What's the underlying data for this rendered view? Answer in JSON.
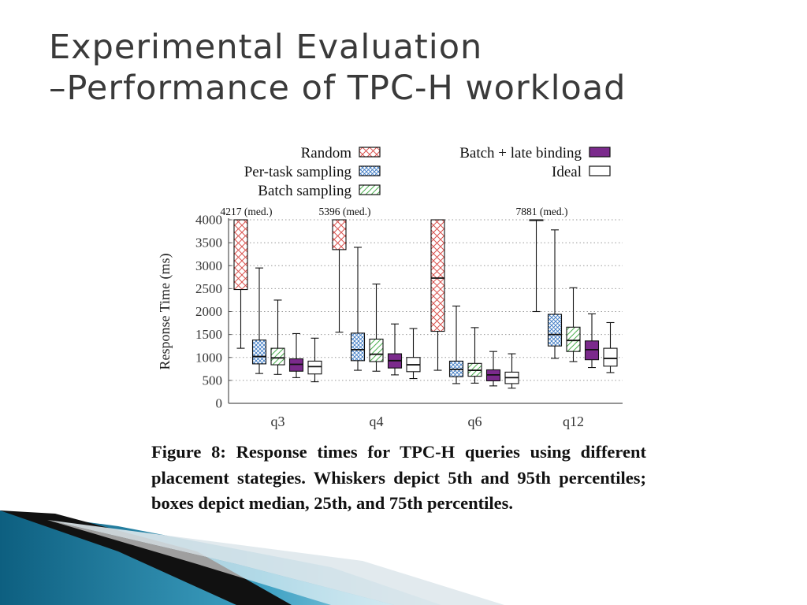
{
  "slide": {
    "title_line1": "Experimental Evaluation",
    "title_line2": "–Performance of TPC-H workload"
  },
  "figure": {
    "caption": "Figure 8: Response times for TPC-H queries using different placement stategies. Whiskers depict 5th and 95th percentiles; boxes depict median, 25th, and 75th percentiles."
  },
  "chart_data": {
    "type": "box",
    "ylabel": "Response Time (ms)",
    "xlabel": "",
    "ylim": [
      0,
      4000
    ],
    "yticks": [
      0,
      500,
      1000,
      1500,
      2000,
      2500,
      3000,
      3500,
      4000
    ],
    "categories": [
      "q3",
      "q4",
      "q6",
      "q12"
    ],
    "grid": true,
    "legend_position": "top",
    "series": [
      {
        "name": "Random",
        "pattern": "diag-cross",
        "color": "#d9534f",
        "values": [
          {
            "p5": 1200,
            "p25": 2480,
            "median": 4217,
            "p75": 4217,
            "p95": 4217
          },
          {
            "p5": 1550,
            "p25": 3350,
            "median": 5396,
            "p75": 5396,
            "p95": 5396
          },
          {
            "p5": 720,
            "p25": 1570,
            "median": 2730,
            "p75": 4000,
            "p95": 4000
          },
          {
            "p5": 2000,
            "p25": 7881,
            "median": 7881,
            "p75": 7881,
            "p95": 7881
          }
        ]
      },
      {
        "name": "Per-task sampling",
        "pattern": "cross-hatch",
        "color": "#3a78c2",
        "values": [
          {
            "p5": 650,
            "p25": 860,
            "median": 1020,
            "p75": 1380,
            "p95": 2950
          },
          {
            "p5": 720,
            "p25": 930,
            "median": 1170,
            "p75": 1530,
            "p95": 3400
          },
          {
            "p5": 430,
            "p25": 580,
            "median": 740,
            "p75": 920,
            "p95": 2120
          },
          {
            "p5": 980,
            "p25": 1250,
            "median": 1500,
            "p75": 1940,
            "p95": 3780
          }
        ]
      },
      {
        "name": "Batch sampling",
        "pattern": "diag",
        "color": "#4caf50",
        "values": [
          {
            "p5": 630,
            "p25": 840,
            "median": 990,
            "p75": 1200,
            "p95": 2250
          },
          {
            "p5": 700,
            "p25": 910,
            "median": 1070,
            "p75": 1400,
            "p95": 2600
          },
          {
            "p5": 440,
            "p25": 590,
            "median": 720,
            "p75": 870,
            "p95": 1650
          },
          {
            "p5": 910,
            "p25": 1130,
            "median": 1370,
            "p75": 1660,
            "p95": 2520
          }
        ]
      },
      {
        "name": "Batch + late binding",
        "pattern": "solid",
        "color": "#7b2a8c",
        "values": [
          {
            "p5": 560,
            "p25": 700,
            "median": 850,
            "p75": 970,
            "p95": 1520
          },
          {
            "p5": 620,
            "p25": 770,
            "median": 930,
            "p75": 1080,
            "p95": 1730
          },
          {
            "p5": 380,
            "p25": 490,
            "median": 620,
            "p75": 730,
            "p95": 1130
          },
          {
            "p5": 780,
            "p25": 950,
            "median": 1170,
            "p75": 1360,
            "p95": 1950
          }
        ]
      },
      {
        "name": "Ideal",
        "pattern": "none",
        "color": "#ffffff",
        "values": [
          {
            "p5": 470,
            "p25": 640,
            "median": 800,
            "p75": 920,
            "p95": 1420
          },
          {
            "p5": 540,
            "p25": 690,
            "median": 840,
            "p75": 1000,
            "p95": 1630
          },
          {
            "p5": 330,
            "p25": 430,
            "median": 560,
            "p75": 680,
            "p95": 1080
          },
          {
            "p5": 670,
            "p25": 810,
            "median": 980,
            "p75": 1200,
            "p95": 1760
          }
        ]
      }
    ],
    "annotations": [
      {
        "category": "q3",
        "series": "Random",
        "text": "4217 (med.)"
      },
      {
        "category": "q4",
        "series": "Random",
        "text": "5396 (med.)"
      },
      {
        "category": "q12",
        "series": "Random",
        "text": "7881 (med.)"
      }
    ]
  }
}
